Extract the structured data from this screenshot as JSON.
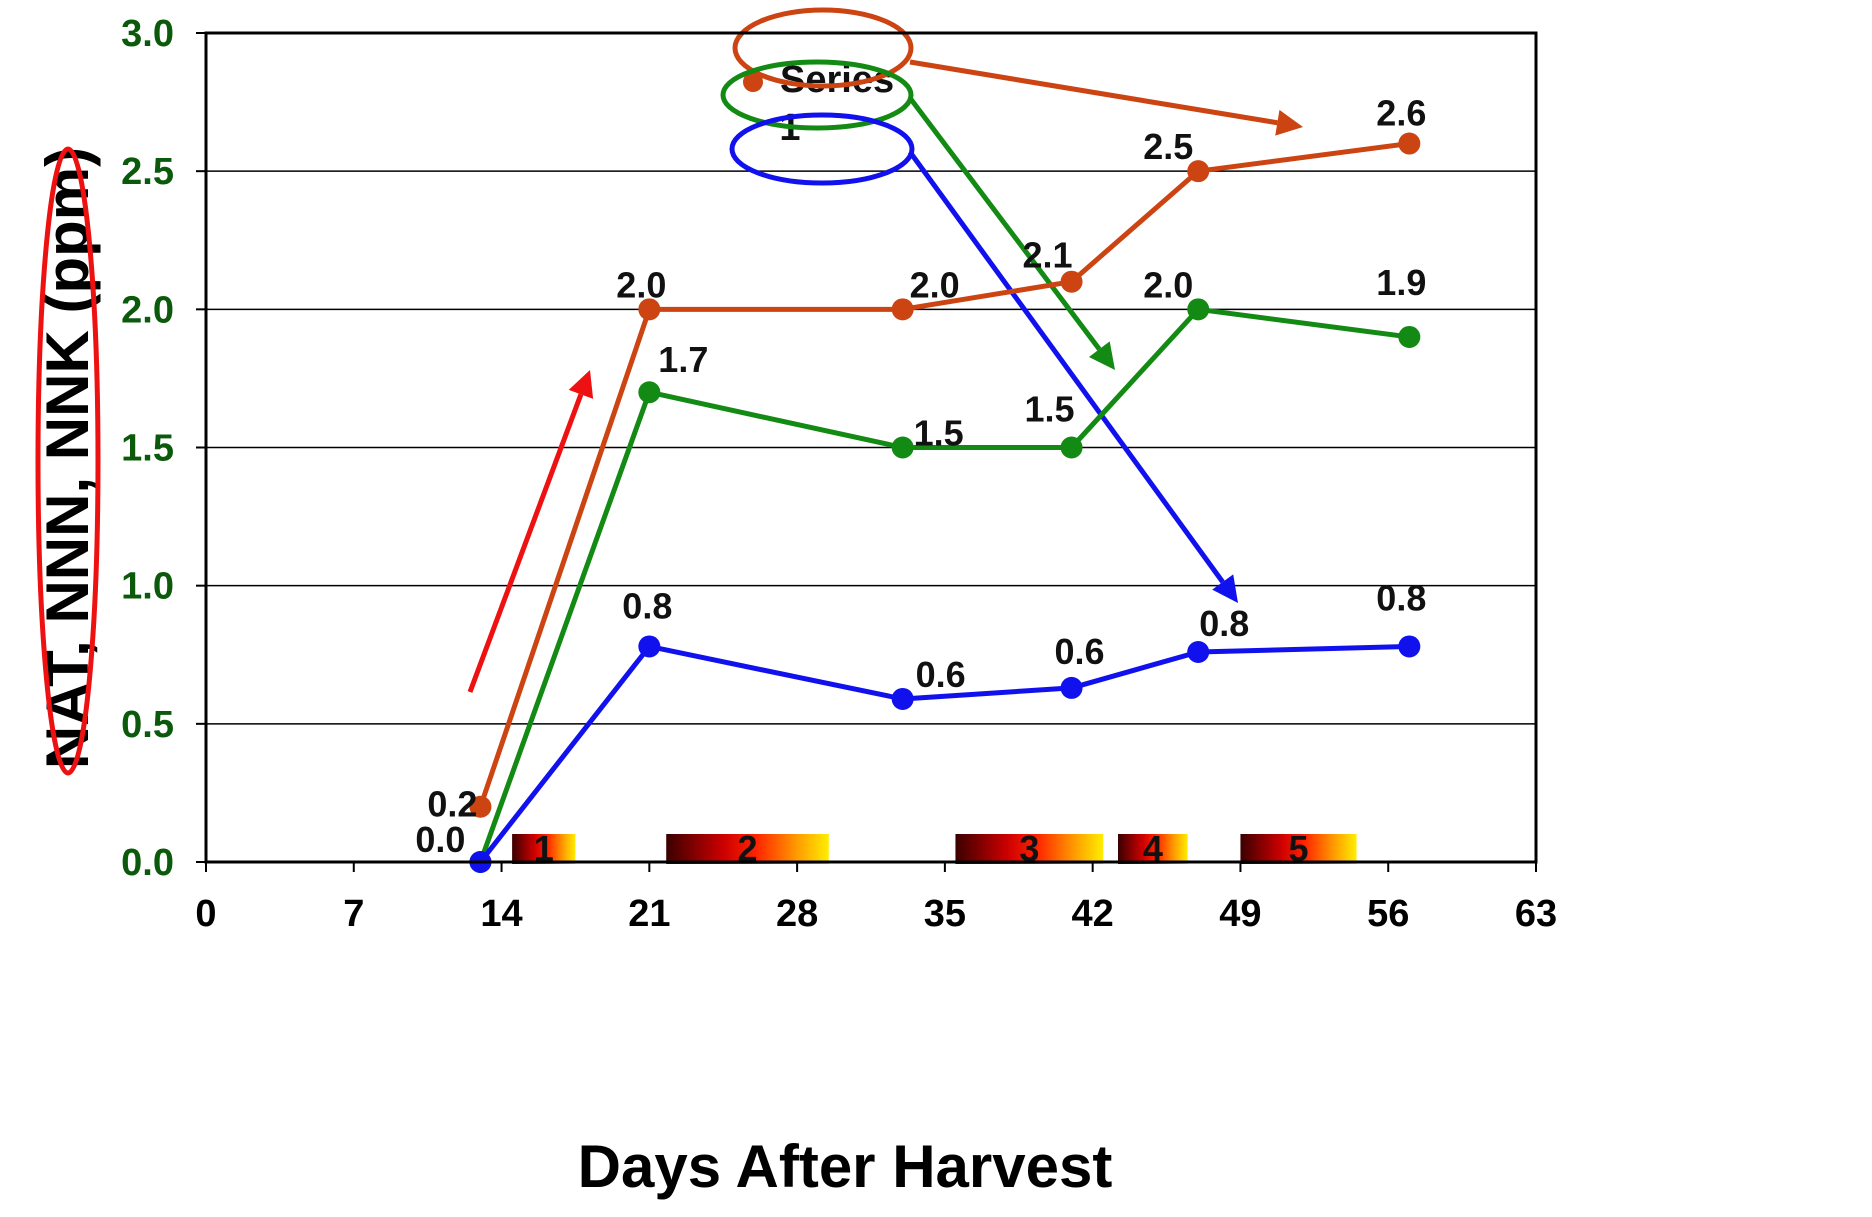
{
  "chart_data": {
    "type": "line",
    "title": "",
    "xlabel": "Days After Harvest",
    "ylabel": "NAT, NNN, NNK (ppm)",
    "xlim": [
      0,
      63
    ],
    "ylim": [
      0,
      3
    ],
    "xticks": [
      "0",
      "7",
      "14",
      "21",
      "28",
      "35",
      "42",
      "49",
      "56",
      "63"
    ],
    "yticks": [
      "0.0",
      "0.5",
      "1.0",
      "1.5",
      "2.0",
      "2.5",
      "3.0"
    ],
    "grid": "horizontal",
    "series": [
      {
        "color": "#cc4411",
        "x": [
          13,
          21,
          33,
          41,
          47,
          57
        ],
        "y": [
          0.2,
          2.0,
          2.0,
          2.1,
          2.5,
          2.6
        ],
        "labels": [
          "0.2",
          "2.0",
          "2.0",
          "2.1",
          "2.5",
          "2.6"
        ]
      },
      {
        "color": "#138a13",
        "x": [
          13,
          21,
          33,
          41,
          47,
          57
        ],
        "y": [
          0.0,
          1.7,
          1.5,
          1.5,
          2.0,
          1.9
        ],
        "labels": [
          "",
          "1.7",
          "1.5",
          "1.5",
          "2.0",
          "1.9"
        ]
      },
      {
        "color": "#1111ee",
        "x": [
          13,
          21,
          33,
          41,
          47,
          57
        ],
        "y": [
          0.0,
          0.78,
          0.59,
          0.63,
          0.76,
          0.78
        ],
        "labels": [
          "0.0",
          "0.8",
          "0.6",
          "0.6",
          "0.8",
          "0.8"
        ]
      }
    ],
    "legend": {
      "text": "Series 1",
      "position": "top-center"
    },
    "stages": [
      {
        "label": "1",
        "x_start": 14.5,
        "x_end": 17.5
      },
      {
        "label": "2",
        "x_start": 21.8,
        "x_end": 29.5
      },
      {
        "label": "3",
        "x_start": 35.5,
        "x_end": 42.5
      },
      {
        "label": "4",
        "x_start": 43.2,
        "x_end": 46.5
      },
      {
        "label": "5",
        "x_start": 49.0,
        "x_end": 54.5
      }
    ],
    "annotation_colors": {
      "ylabel_ellipse": "#ee1111",
      "rise_arrow": "#ee1111"
    }
  }
}
